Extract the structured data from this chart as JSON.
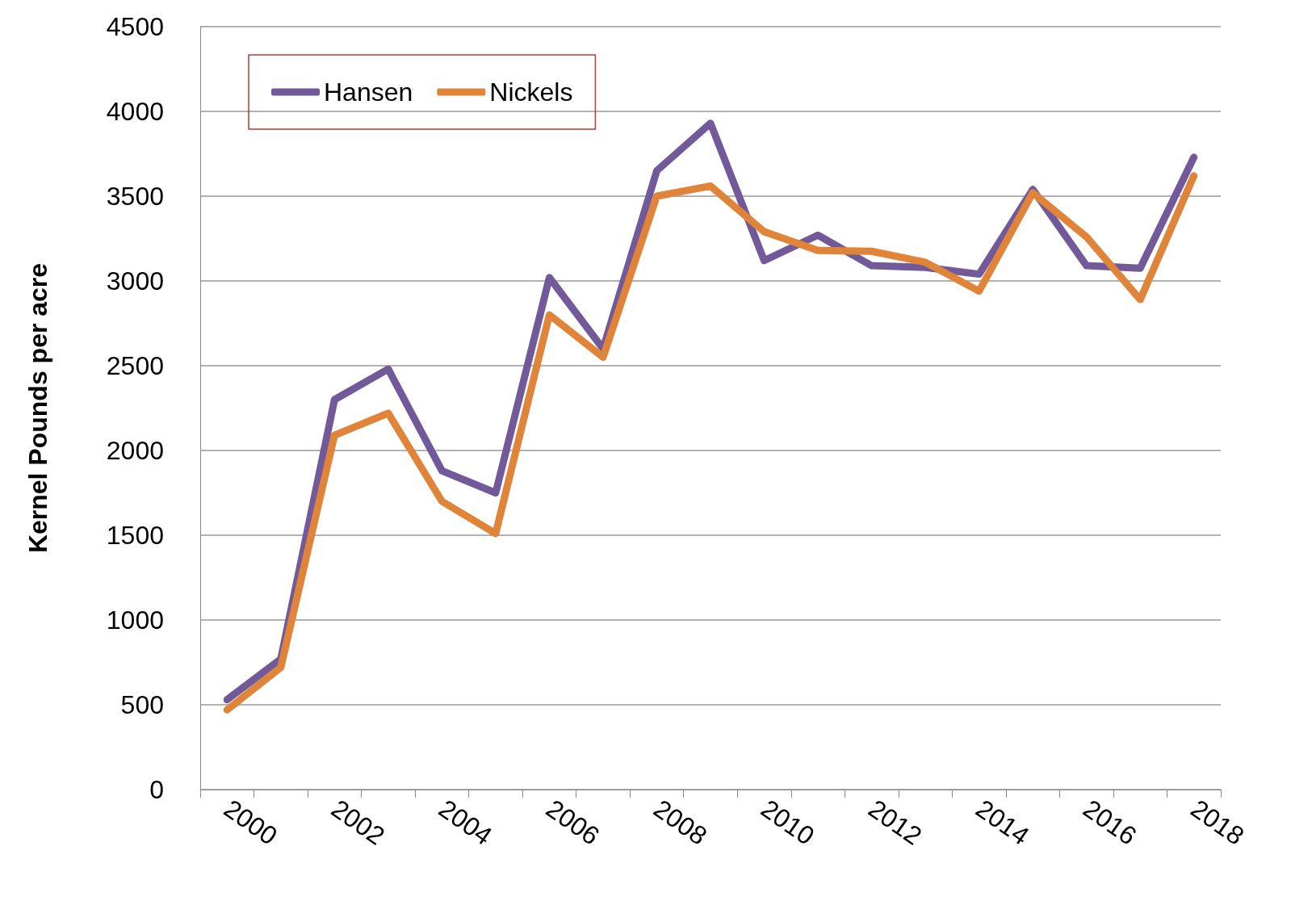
{
  "chart_data": {
    "type": "line",
    "ylabel": "Kernel Pounds per acre",
    "categories": [
      "2000",
      null,
      "2002",
      null,
      "2004",
      null,
      "2006",
      null,
      "2008",
      null,
      "2010",
      null,
      "2012",
      null,
      "2014",
      null,
      "2016",
      null,
      "2018"
    ],
    "series": [
      {
        "name": "Hansen",
        "color": "#72599a",
        "values": [
          530,
          770,
          2300,
          2480,
          1880,
          1750,
          3020,
          2600,
          3650,
          3930,
          3120,
          3270,
          3090,
          3080,
          3040,
          3540,
          3090,
          3075,
          3730
        ]
      },
      {
        "name": "Nickels",
        "color": "#e0843a",
        "values": [
          470,
          720,
          2090,
          2220,
          1700,
          1510,
          2800,
          2550,
          3500,
          3560,
          3290,
          3180,
          3175,
          3110,
          2940,
          3520,
          3260,
          2890,
          3620
        ]
      }
    ],
    "ylim": [
      0,
      4500
    ],
    "yticks": [
      0,
      500,
      1000,
      1500,
      2000,
      2500,
      3000,
      3500,
      4000,
      4500
    ],
    "grid": "y",
    "legend": "top left",
    "marker": "none",
    "line_style": "solid"
  }
}
